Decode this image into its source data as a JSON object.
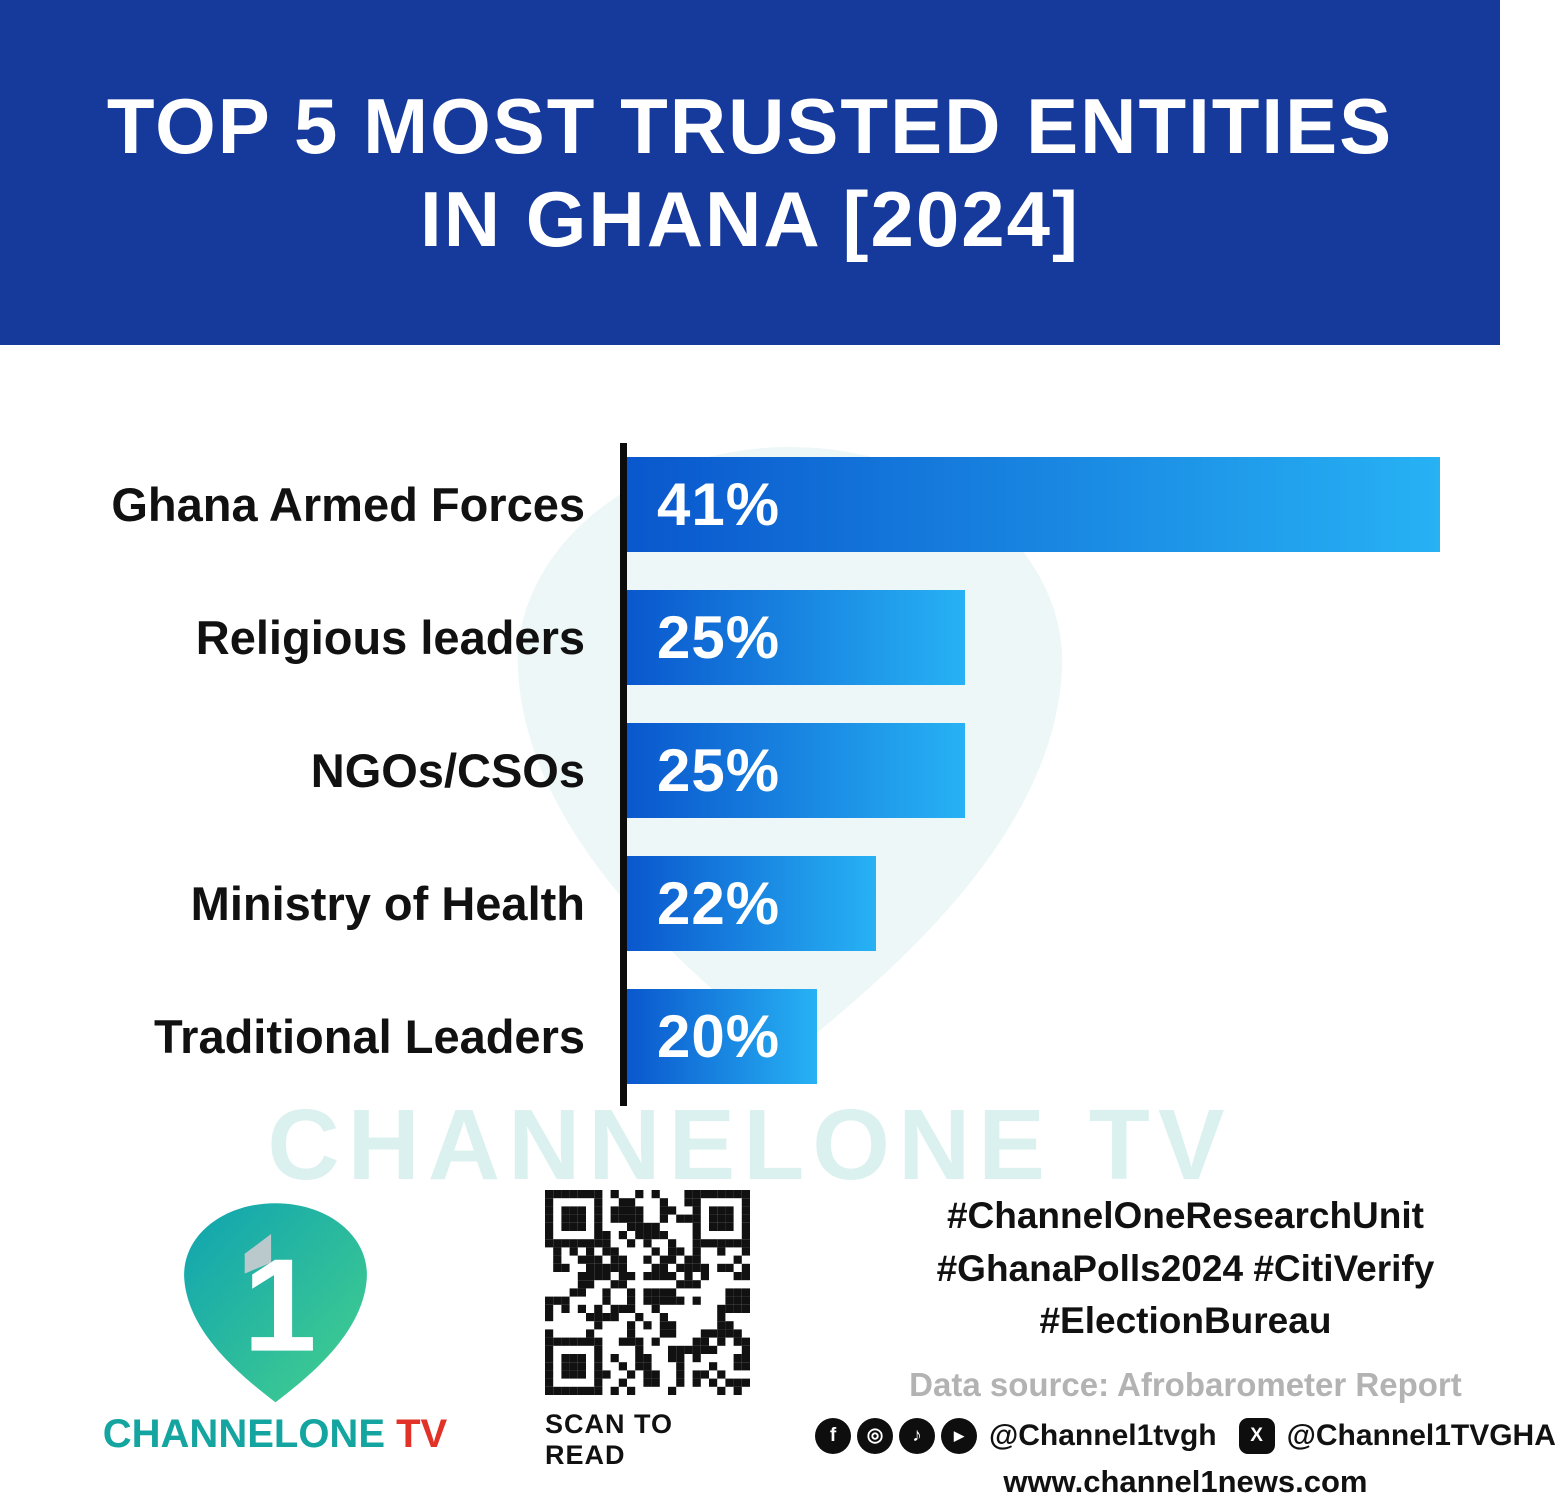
{
  "header": {
    "title_line1": "TOP 5 MOST TRUSTED ENTITIES",
    "title_line2": "IN GHANA [2024]"
  },
  "chart_data": {
    "type": "bar",
    "orientation": "horizontal",
    "title": "Top 5 Most Trusted Entities in Ghana [2024]",
    "categories": [
      "Ghana Armed Forces",
      "Religious leaders",
      "NGOs/CSOs",
      "Ministry of Health",
      "Traditional Leaders"
    ],
    "values": [
      41,
      25,
      25,
      22,
      20
    ],
    "value_labels": [
      "41%",
      "25%",
      "25%",
      "22%",
      "20%"
    ],
    "unit": "%",
    "value_label_position": "inside-left",
    "legend": "none",
    "grid": "off",
    "bar_color_start": "#0a57cd",
    "bar_color_end": "#27b2f4",
    "axis_color": "#0c0c0c"
  },
  "watermark": "CHANNELONE TV",
  "footer": {
    "logo": {
      "wordmark_main": "CHANNELONE",
      "wordmark_tv": " TV",
      "numeral": "1"
    },
    "qr_caption": "SCAN TO READ",
    "hashtags": [
      "#ChannelOneResearchUnit",
      "#GhanaPolls2024 #CitiVerify",
      "#ElectionBureau"
    ],
    "data_source": "Data source: Afrobarometer Report",
    "social_handle_1": "@Channel1tvgh",
    "social_handle_2": "@Channel1TVGHA",
    "website": "www.channel1news.com",
    "icons": {
      "facebook": "f",
      "instagram": "◎",
      "tiktok": "♪",
      "youtube": "▶",
      "x": "X"
    }
  },
  "colors": {
    "header_bg": "#16399c",
    "page_bg": "#ffffff",
    "accent_teal": "#14a5a0",
    "accent_red": "#e23126",
    "text": "#111111",
    "muted": "#b3b3b3"
  }
}
